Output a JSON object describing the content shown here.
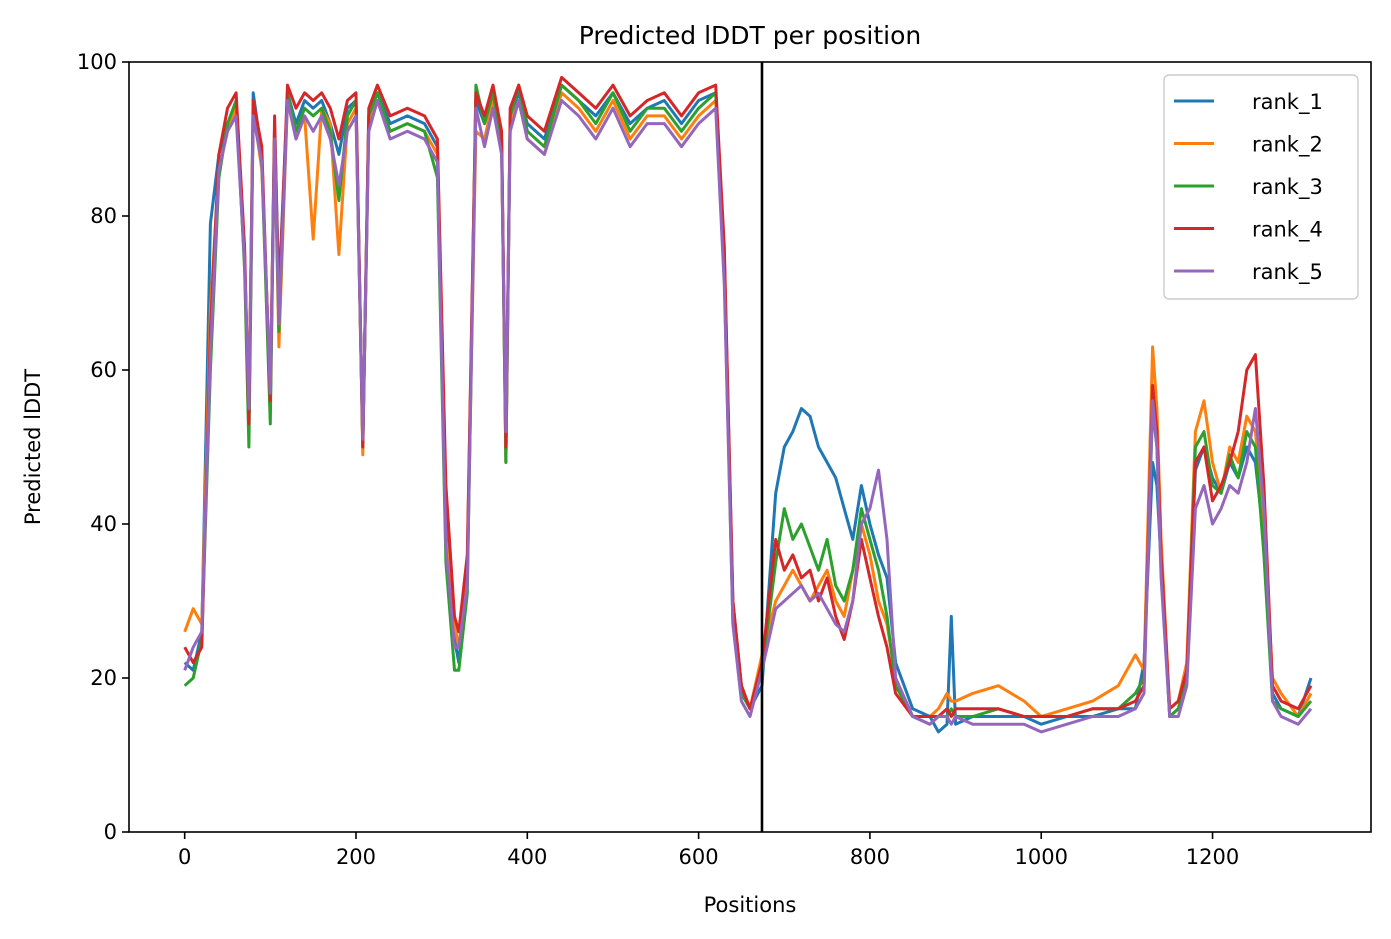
{
  "chart_data": {
    "type": "line",
    "title": "Predicted lDDT per position",
    "xlabel": "Positions",
    "ylabel": "Predicted lDDT",
    "xlim": [
      -65,
      1385
    ],
    "ylim": [
      0,
      100
    ],
    "xticks": [
      0,
      200,
      400,
      600,
      800,
      1000,
      1200
    ],
    "yticks": [
      0,
      20,
      40,
      60,
      80,
      100
    ],
    "legend_position": "top-right",
    "grid": false,
    "vline": {
      "x": 674,
      "color": "#000000"
    },
    "series": [
      {
        "name": "rank_1",
        "color": "#1f77b4",
        "x": [
          0,
          10,
          20,
          30,
          40,
          50,
          60,
          70,
          75,
          80,
          90,
          100,
          105,
          110,
          120,
          130,
          140,
          150,
          160,
          170,
          180,
          190,
          200,
          208,
          215,
          225,
          240,
          260,
          280,
          295,
          305,
          315,
          320,
          330,
          340,
          350,
          360,
          370,
          375,
          380,
          390,
          400,
          420,
          440,
          460,
          480,
          500,
          520,
          540,
          560,
          580,
          600,
          620,
          630,
          640,
          650,
          660,
          674,
          690,
          700,
          710,
          720,
          730,
          740,
          750,
          760,
          770,
          780,
          790,
          800,
          810,
          820,
          830,
          850,
          870,
          880,
          890,
          895,
          900,
          920,
          950,
          980,
          1000,
          1030,
          1060,
          1090,
          1110,
          1120,
          1130,
          1135,
          1140,
          1150,
          1160,
          1170,
          1180,
          1190,
          1200,
          1210,
          1220,
          1230,
          1240,
          1250,
          1260,
          1270,
          1280,
          1300,
          1315
        ],
        "y": [
          22,
          21,
          26,
          79,
          88,
          92,
          94,
          75,
          53,
          96,
          88,
          55,
          92,
          70,
          96,
          92,
          95,
          94,
          95,
          92,
          88,
          94,
          95,
          50,
          93,
          96,
          92,
          93,
          92,
          89,
          40,
          25,
          22,
          35,
          95,
          92,
          96,
          90,
          48,
          93,
          96,
          92,
          90,
          97,
          95,
          93,
          96,
          92,
          94,
          95,
          92,
          95,
          96,
          75,
          30,
          19,
          16,
          19,
          44,
          50,
          52,
          55,
          54,
          50,
          48,
          46,
          42,
          38,
          45,
          40,
          36,
          33,
          22,
          16,
          15,
          13,
          14,
          28,
          14,
          15,
          15,
          15,
          14,
          15,
          15,
          16,
          16,
          22,
          48,
          45,
          35,
          15,
          16,
          20,
          47,
          50,
          46,
          44,
          48,
          46,
          50,
          48,
          38,
          18,
          16,
          15,
          20
        ]
      },
      {
        "name": "rank_2",
        "color": "#ff7f0e",
        "x": [
          0,
          10,
          20,
          30,
          40,
          50,
          60,
          70,
          75,
          80,
          90,
          100,
          105,
          110,
          120,
          130,
          140,
          150,
          160,
          170,
          180,
          190,
          200,
          208,
          215,
          225,
          240,
          260,
          280,
          295,
          305,
          315,
          320,
          330,
          340,
          350,
          360,
          370,
          375,
          380,
          390,
          400,
          420,
          440,
          460,
          480,
          500,
          520,
          540,
          560,
          580,
          600,
          620,
          630,
          640,
          650,
          660,
          674,
          690,
          700,
          710,
          720,
          730,
          740,
          750,
          760,
          770,
          780,
          790,
          800,
          810,
          820,
          830,
          850,
          870,
          880,
          890,
          895,
          900,
          920,
          950,
          980,
          1000,
          1030,
          1060,
          1090,
          1110,
          1120,
          1130,
          1135,
          1140,
          1150,
          1160,
          1170,
          1180,
          1190,
          1200,
          1210,
          1220,
          1230,
          1240,
          1250,
          1260,
          1270,
          1280,
          1300,
          1315
        ],
        "y": [
          26,
          29,
          27,
          68,
          86,
          91,
          94,
          74,
          56,
          94,
          86,
          58,
          90,
          63,
          95,
          90,
          93,
          77,
          94,
          92,
          75,
          92,
          94,
          49,
          92,
          95,
          91,
          92,
          91,
          88,
          38,
          27,
          24,
          33,
          91,
          90,
          95,
          89,
          48,
          92,
          95,
          90,
          88,
          96,
          94,
          91,
          95,
          90,
          93,
          93,
          90,
          93,
          95,
          72,
          28,
          19,
          16,
          23,
          30,
          32,
          34,
          32,
          30,
          32,
          34,
          30,
          28,
          34,
          40,
          36,
          30,
          27,
          20,
          15,
          15,
          16,
          18,
          17,
          17,
          18,
          19,
          17,
          15,
          16,
          17,
          19,
          23,
          21,
          63,
          55,
          38,
          16,
          17,
          22,
          52,
          56,
          48,
          44,
          50,
          48,
          54,
          52,
          40,
          20,
          18,
          15,
          18
        ]
      },
      {
        "name": "rank_3",
        "color": "#2ca02c",
        "x": [
          0,
          10,
          20,
          30,
          40,
          50,
          60,
          70,
          75,
          80,
          90,
          100,
          105,
          110,
          120,
          130,
          140,
          150,
          160,
          170,
          180,
          190,
          200,
          208,
          215,
          225,
          240,
          260,
          280,
          295,
          305,
          315,
          320,
          330,
          340,
          350,
          360,
          370,
          375,
          380,
          390,
          400,
          420,
          440,
          460,
          480,
          500,
          520,
          540,
          560,
          580,
          600,
          620,
          630,
          640,
          650,
          660,
          674,
          690,
          700,
          710,
          720,
          730,
          740,
          750,
          760,
          770,
          780,
          790,
          800,
          810,
          820,
          830,
          850,
          870,
          880,
          890,
          895,
          900,
          920,
          950,
          980,
          1000,
          1030,
          1060,
          1090,
          1110,
          1120,
          1130,
          1135,
          1140,
          1150,
          1160,
          1170,
          1180,
          1190,
          1200,
          1210,
          1220,
          1230,
          1240,
          1250,
          1260,
          1270,
          1280,
          1300,
          1315
        ],
        "y": [
          19,
          20,
          25,
          60,
          85,
          92,
          95,
          73,
          50,
          93,
          87,
          53,
          91,
          65,
          96,
          91,
          94,
          93,
          94,
          91,
          82,
          93,
          95,
          50,
          93,
          96,
          91,
          92,
          91,
          85,
          35,
          21,
          21,
          31,
          97,
          92,
          96,
          90,
          48,
          93,
          97,
          91,
          89,
          97,
          95,
          92,
          96,
          91,
          94,
          94,
          91,
          94,
          96,
          74,
          27,
          18,
          16,
          21,
          35,
          42,
          38,
          40,
          37,
          34,
          38,
          32,
          30,
          34,
          42,
          38,
          34,
          28,
          19,
          15,
          14,
          15,
          15,
          16,
          15,
          15,
          16,
          15,
          15,
          15,
          16,
          16,
          18,
          20,
          55,
          50,
          35,
          15,
          16,
          20,
          50,
          52,
          45,
          44,
          49,
          46,
          52,
          50,
          36,
          17,
          16,
          15,
          17
        ]
      },
      {
        "name": "rank_4",
        "color": "#d62728",
        "x": [
          0,
          10,
          20,
          30,
          40,
          50,
          60,
          70,
          75,
          80,
          90,
          100,
          105,
          110,
          120,
          130,
          140,
          150,
          160,
          170,
          180,
          190,
          200,
          208,
          215,
          225,
          240,
          260,
          280,
          295,
          305,
          315,
          320,
          330,
          340,
          350,
          360,
          370,
          375,
          380,
          390,
          400,
          420,
          440,
          460,
          480,
          500,
          520,
          540,
          560,
          580,
          600,
          620,
          630,
          640,
          650,
          660,
          674,
          690,
          700,
          710,
          720,
          730,
          740,
          750,
          760,
          770,
          780,
          790,
          800,
          810,
          820,
          830,
          850,
          870,
          880,
          890,
          895,
          900,
          920,
          950,
          980,
          1000,
          1030,
          1060,
          1090,
          1110,
          1120,
          1130,
          1135,
          1140,
          1150,
          1160,
          1170,
          1180,
          1190,
          1200,
          1210,
          1220,
          1230,
          1240,
          1250,
          1260,
          1270,
          1280,
          1300,
          1315
        ],
        "y": [
          24,
          22,
          24,
          65,
          88,
          94,
          96,
          76,
          53,
          95,
          89,
          56,
          93,
          68,
          97,
          94,
          96,
          95,
          96,
          94,
          90,
          95,
          96,
          50,
          94,
          97,
          93,
          94,
          93,
          90,
          45,
          28,
          26,
          36,
          96,
          93,
          97,
          91,
          50,
          94,
          97,
          93,
          91,
          98,
          96,
          94,
          97,
          93,
          95,
          96,
          93,
          96,
          97,
          76,
          30,
          19,
          16,
          22,
          38,
          34,
          36,
          33,
          34,
          30,
          33,
          28,
          25,
          30,
          38,
          33,
          28,
          24,
          18,
          15,
          15,
          15,
          16,
          15,
          16,
          16,
          16,
          15,
          15,
          15,
          16,
          16,
          17,
          19,
          58,
          52,
          36,
          16,
          17,
          21,
          48,
          50,
          43,
          45,
          48,
          52,
          60,
          62,
          45,
          19,
          17,
          16,
          19
        ]
      },
      {
        "name": "rank_5",
        "color": "#9467bd",
        "x": [
          0,
          10,
          20,
          30,
          40,
          50,
          60,
          70,
          75,
          80,
          90,
          100,
          105,
          110,
          120,
          130,
          140,
          150,
          160,
          170,
          180,
          190,
          200,
          208,
          215,
          225,
          240,
          260,
          280,
          295,
          305,
          315,
          320,
          330,
          340,
          350,
          360,
          370,
          375,
          380,
          390,
          400,
          420,
          440,
          460,
          480,
          500,
          520,
          540,
          560,
          580,
          600,
          620,
          630,
          640,
          650,
          660,
          674,
          690,
          700,
          710,
          720,
          730,
          740,
          750,
          760,
          770,
          780,
          790,
          800,
          810,
          820,
          830,
          850,
          870,
          880,
          890,
          895,
          900,
          920,
          950,
          980,
          1000,
          1030,
          1060,
          1090,
          1110,
          1120,
          1130,
          1135,
          1140,
          1150,
          1160,
          1170,
          1180,
          1190,
          1200,
          1210,
          1220,
          1230,
          1240,
          1250,
          1260,
          1270,
          1280,
          1300,
          1315
        ],
        "y": [
          21,
          24,
          26,
          62,
          86,
          91,
          93,
          74,
          55,
          93,
          87,
          57,
          90,
          66,
          95,
          90,
          93,
          91,
          93,
          90,
          84,
          91,
          93,
          51,
          91,
          95,
          90,
          91,
          90,
          87,
          37,
          24,
          24,
          32,
          94,
          89,
          94,
          88,
          52,
          91,
          95,
          90,
          88,
          95,
          93,
          90,
          94,
          89,
          92,
          92,
          89,
          92,
          94,
          71,
          27,
          17,
          15,
          21,
          29,
          30,
          31,
          32,
          30,
          31,
          29,
          27,
          26,
          30,
          40,
          42,
          47,
          38,
          20,
          15,
          14,
          15,
          15,
          14,
          15,
          14,
          14,
          14,
          13,
          14,
          15,
          15,
          16,
          18,
          56,
          50,
          33,
          15,
          15,
          19,
          42,
          45,
          40,
          42,
          45,
          44,
          48,
          55,
          42,
          17,
          15,
          14,
          16
        ]
      }
    ]
  }
}
